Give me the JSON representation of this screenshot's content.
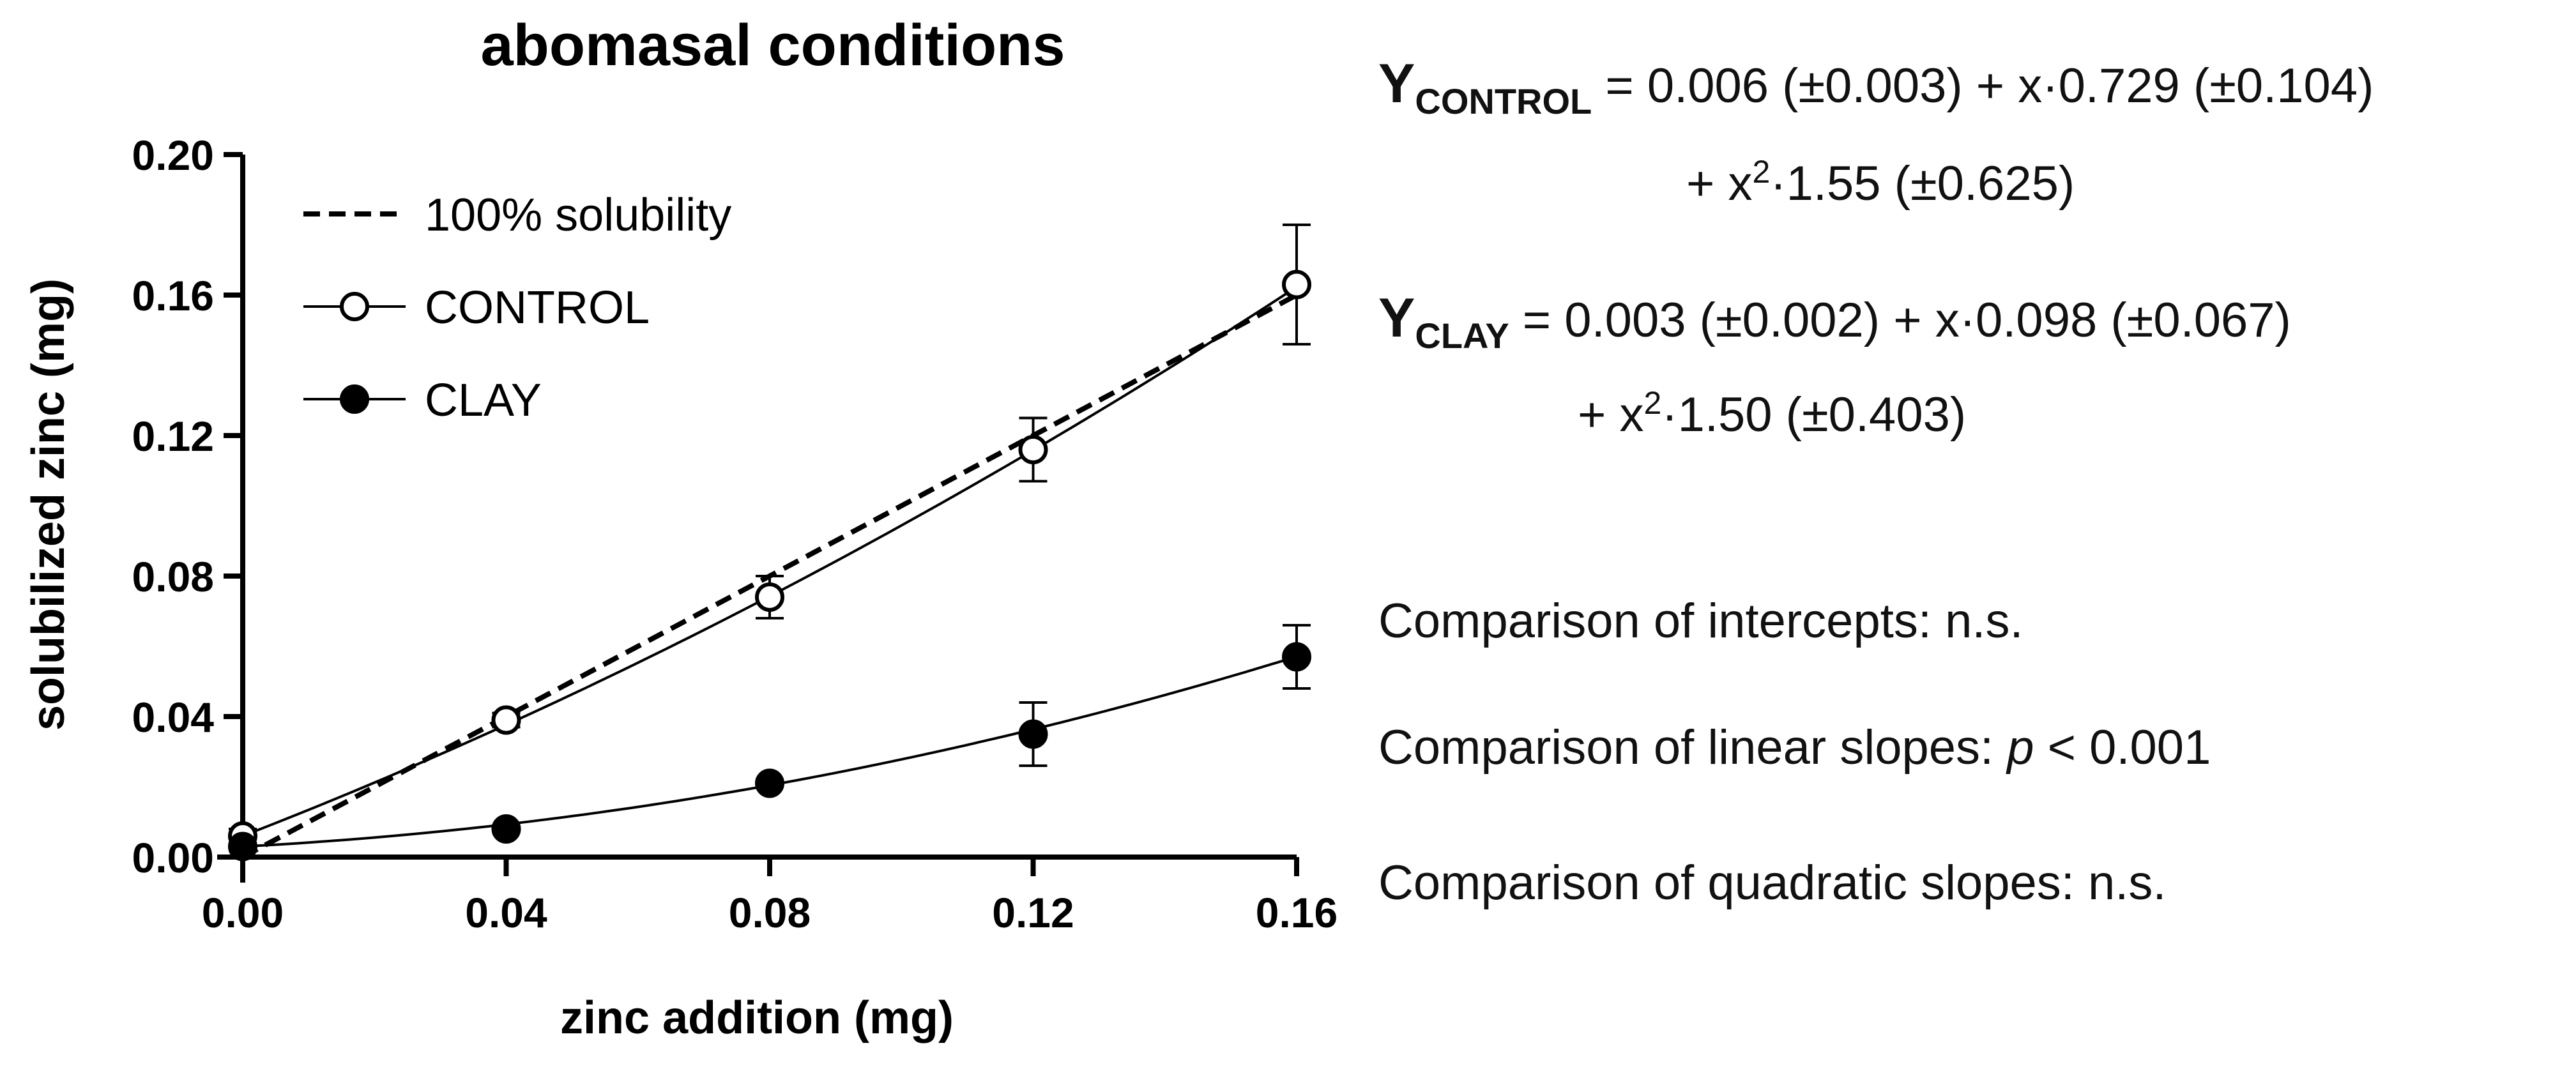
{
  "chart_data": {
    "type": "line",
    "title": "abomasal conditions",
    "xlabel": "zinc addition (mg)",
    "ylabel": "solubilized zinc (mg)",
    "xlim": [
      0,
      0.16
    ],
    "ylim": [
      0,
      0.2
    ],
    "x_ticks": [
      "0.00",
      "0.04",
      "0.08",
      "0.12",
      "0.16"
    ],
    "y_ticks": [
      "0.00",
      "0.04",
      "0.08",
      "0.12",
      "0.16",
      "0.20"
    ],
    "x_tick_values": [
      0,
      0.04,
      0.08,
      0.12,
      0.16
    ],
    "y_tick_values": [
      0,
      0.04,
      0.08,
      0.12,
      0.16,
      0.2
    ],
    "legend": [
      "100% solubility",
      "CONTROL",
      "CLAY"
    ],
    "legend_position": "top-left",
    "reference_line": {
      "name": "100% solubility",
      "x": [
        0,
        0.16
      ],
      "y": [
        0,
        0.16
      ]
    },
    "series": [
      {
        "name": "CONTROL",
        "marker": "open-circle",
        "x": [
          0,
          0.04,
          0.08,
          0.12,
          0.16
        ],
        "y": [
          0.006,
          0.039,
          0.074,
          0.116,
          0.163
        ],
        "err": [
          0.002,
          0.002,
          0.006,
          0.009,
          0.017
        ],
        "fit": {
          "a": 0.006,
          "b": 0.729,
          "c": 1.55
        }
      },
      {
        "name": "CLAY",
        "marker": "filled-circle",
        "x": [
          0,
          0.04,
          0.08,
          0.12,
          0.16
        ],
        "y": [
          0.003,
          0.008,
          0.021,
          0.035,
          0.057
        ],
        "err": [
          0.001,
          0.001,
          0.001,
          0.009,
          0.009
        ],
        "fit": {
          "a": 0.003,
          "b": 0.098,
          "c": 1.5
        }
      }
    ]
  },
  "equations": {
    "control": {
      "y": "Y",
      "sub": "CONTROL",
      "line1": " = 0.006 (±0.003) + x·0.729 (±0.104)",
      "line2_pre": "+ x",
      "sup": "2",
      "line2_post": "·1.55 (±0.625)"
    },
    "clay": {
      "y": "Y",
      "sub": "CLAY",
      "line1": " = 0.003 (±0.002) + x·0.098 (±0.067)",
      "line2_pre": "+ x",
      "sup": "2",
      "line2_post": "·1.50 (±0.403)"
    }
  },
  "comparisons": {
    "intercepts": "Comparison of intercepts: n.s.",
    "linear_pre": "Comparison of linear slopes: ",
    "linear_p": "p",
    "linear_post": " < 0.001",
    "quadratic": "Comparison of quadratic slopes: n.s."
  }
}
